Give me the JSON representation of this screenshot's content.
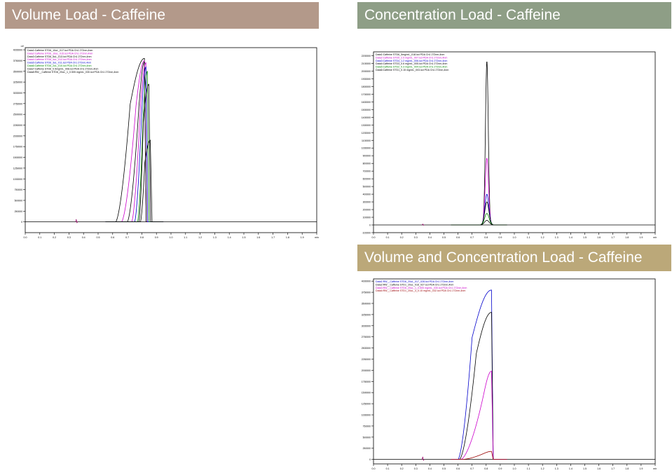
{
  "banners": {
    "volume": {
      "title": "Volume Load - Caffeine",
      "color": "#b3998a"
    },
    "concentration": {
      "title": "Concentration Load - Caffeine",
      "color": "#8e9e86"
    },
    "volume_concentration": {
      "title": "Volume and Concentration Load - Caffeine",
      "color": "#bba879"
    }
  },
  "chart_data": [
    {
      "id": "volume",
      "type": "line",
      "ylabel": "uV",
      "xlabel": "min",
      "xlim": [
        0.0,
        2.0
      ],
      "ylim": [
        -250000,
        4050000
      ],
      "xticks": [
        "0.0",
        "0.1",
        "0.2",
        "0.3",
        "0.4",
        "0.5",
        "0.6",
        "0.7",
        "0.8",
        "0.9",
        "1.0",
        "1.1",
        "1.2",
        "1.3",
        "1.4",
        "1.5",
        "1.6",
        "1.7",
        "1.8",
        "1.9",
        "min"
      ],
      "yticks": [
        "4000000",
        "3750000",
        "3500000",
        "3250000",
        "3000000",
        "2750000",
        "2500000",
        "2250000",
        "2000000",
        "1750000",
        "1500000",
        "1250000",
        "1000000",
        "750000",
        "500000",
        "250000",
        "0"
      ],
      "series": [
        {
          "name": "Data1:Caffeine STD6_10uL_017.lcd PDA Ch1 272nm,4nm",
          "color": "#000000",
          "start": 0.62,
          "rise": 0.72,
          "end": 0.83,
          "peak": 3800000
        },
        {
          "name": "Data2:Caffeine STD6_10uL_015.lcd PDA Ch1 272nm,4nm",
          "color": "#cc00cc",
          "start": 0.66,
          "rise": 0.76,
          "end": 0.83,
          "peak": 3750000
        },
        {
          "name": "Data3:Caffeine STD6_5uL_013.lcd PDA Ch1 272nm,4nm",
          "color": "#000000",
          "start": 0.7,
          "rise": 0.78,
          "end": 0.83,
          "peak": 3720000
        },
        {
          "name": "Data4:Caffeine STD6_4uL_012.lcd PDA Ch1 272nm,4nm",
          "color": "#cc00cc",
          "start": 0.73,
          "rise": 0.79,
          "end": 0.84,
          "peak": 3700000
        },
        {
          "name": "Data5:Caffeine STD6_3uL_011.lcd PDA Ch1 272nm,4nm",
          "color": "#0000cc",
          "start": 0.75,
          "rise": 0.8,
          "end": 0.84,
          "peak": 3600000
        },
        {
          "name": "Data6:Caffeine STD6_2uL_010.lcd PDA Ch1 272nm,4nm",
          "color": "#008800",
          "start": 0.77,
          "rise": 0.81,
          "end": 0.85,
          "peak": 3500000
        },
        {
          "name": "Data7:Caffeine STD6_0.5mg/mL_008.lcd PDA Ch1 272nm,4nm",
          "color": "#000000",
          "start": 0.78,
          "rise": 0.81,
          "end": 0.86,
          "peak": 3200000
        },
        {
          "name": "Data8:RW__Caffeine STD6_20uL_1_0.505 mg/mL_030.lcd PDA Ch1 272nm,4nm",
          "color": "#000000",
          "start": 0.79,
          "rise": 0.82,
          "end": 0.87,
          "peak": 1900000
        }
      ]
    },
    {
      "id": "concentration",
      "type": "line",
      "ylabel": "",
      "xlabel": "min",
      "xlim": [
        0.0,
        2.0
      ],
      "ylim": [
        -100000,
        2250000
      ],
      "xticks": [
        "0.0",
        "0.1",
        "0.2",
        "0.3",
        "0.4",
        "0.5",
        "0.6",
        "0.7",
        "0.8",
        "0.9",
        "1.0",
        "1.1",
        "1.2",
        "1.3",
        "1.4",
        "1.5",
        "1.6",
        "1.7",
        "1.8",
        "1.9",
        "min"
      ],
      "yticks": [
        "2200000",
        "2100000",
        "2000000",
        "1900000",
        "1800000",
        "1700000",
        "1600000",
        "1500000",
        "1400000",
        "1300000",
        "1200000",
        "1100000",
        "1000000",
        "900000",
        "800000",
        "700000",
        "600000",
        "500000",
        "400000",
        "300000",
        "200000",
        "100000",
        "0",
        "-100000"
      ],
      "series": [
        {
          "name": "Data1:Caffeine STD6_5mg/mL_018.lcd PDA Ch1 272nm,4nm",
          "color": "#000000",
          "peak": 2130000,
          "width": 0.022
        },
        {
          "name": "Data2:Caffeine STD5_2.5 mg/mL_007.lcd PDA Ch1 272nm,4nm",
          "color": "#cc00cc",
          "peak": 870000,
          "width": 0.026
        },
        {
          "name": "Data3:Caffeine STD4_1.2 mg/mL_006.lcd PDA Ch1 272nm,4nm",
          "color": "#0000cc",
          "peak": 400000,
          "width": 0.03
        },
        {
          "name": "Data4:Caffeine STD3_0.6 mg/mL_005.lcd PDA Ch1 272nm,4nm",
          "color": "#000000",
          "peak": 300000,
          "width": 0.032
        },
        {
          "name": "Data5:Caffeine STD2_0.3 mg/mL_004.lcd PDA Ch1 272nm,4nm",
          "color": "#008800",
          "peak": 150000,
          "width": 0.034
        },
        {
          "name": "Data6:Caffeine STD1_0.15 mg/mL_003.lcd PDA Ch1 272nm,4nm",
          "color": "#000000",
          "peak": 60000,
          "width": 0.036
        }
      ]
    },
    {
      "id": "volume_concentration",
      "type": "line",
      "ylabel": "",
      "xlabel": "min",
      "xlim": [
        0.0,
        2.0
      ],
      "ylim": [
        -100000,
        4050000
      ],
      "xticks": [
        "0.0",
        "0.1",
        "0.2",
        "0.3",
        "0.4",
        "0.5",
        "0.6",
        "0.7",
        "0.8",
        "0.9",
        "1.0",
        "1.1",
        "1.2",
        "1.3",
        "1.4",
        "1.5",
        "1.6",
        "1.7",
        "1.8",
        "1.9",
        "min"
      ],
      "yticks": [
        "4000000",
        "3750000",
        "3500000",
        "3250000",
        "3000000",
        "2750000",
        "2500000",
        "2250000",
        "2000000",
        "1750000",
        "1500000",
        "1250000",
        "1000000",
        "750000",
        "500000",
        "250000",
        "0"
      ],
      "series": [
        {
          "name": "Data1:RW__Caffeine STD6_20uL_017_028.lcd PDA Ch1 272nm,4nm",
          "color": "#0000cc",
          "start": 0.6,
          "rise": 0.7,
          "end": 0.85,
          "peak": 3800000
        },
        {
          "name": "Data2:RW__Caffeine STD1_20uL_016_027.lcd PDA Ch1 272nm,4nm",
          "color": "#000000",
          "start": 0.61,
          "rise": 0.73,
          "end": 0.85,
          "peak": 3300000
        },
        {
          "name": "Data3:RW__Caffeine STD6_20uL_1_0.505 mg/mL_030.lcd PDA Ch1 272nm,4nm",
          "color": "#cc00cc",
          "start": 0.62,
          "rise": 0.78,
          "end": 0.85,
          "peak": 1980000
        },
        {
          "name": "Data4:RW__Caffeine STD1_20uL_3_0.15 mg/mL_032.lcd PDA Ch1 272nm,4nm",
          "color": "#990000",
          "start": 0.63,
          "rise": 0.78,
          "end": 0.85,
          "peak": 180000
        }
      ]
    }
  ]
}
